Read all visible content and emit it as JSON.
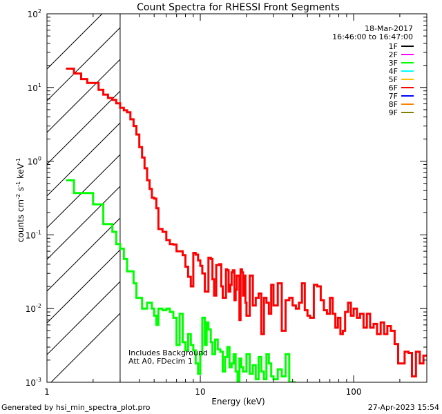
{
  "chart_data": {
    "type": "line",
    "title": "Count Spectra for RHESSI Front Segments",
    "xlabel": "Energy (keV)",
    "ylabel_parts": [
      "counts cm",
      "-2",
      " s",
      "-1",
      " keV",
      "-1"
    ],
    "xscale": "log",
    "yscale": "log",
    "xlim": [
      1,
      300
    ],
    "ylim": [
      0.001,
      100
    ],
    "x_ticks": [
      {
        "value": 1,
        "label": "1"
      },
      {
        "value": 10,
        "label": "10"
      },
      {
        "value": 100,
        "label": "100"
      }
    ],
    "y_ticks": [
      {
        "value": 0.001,
        "base": "10",
        "exp": "-3"
      },
      {
        "value": 0.01,
        "base": "10",
        "exp": "-2"
      },
      {
        "value": 0.1,
        "base": "10",
        "exp": "-1"
      },
      {
        "value": 1,
        "base": "10",
        "exp": "0"
      },
      {
        "value": 10,
        "base": "10",
        "exp": "1"
      },
      {
        "value": 100,
        "base": "10",
        "exp": "2"
      }
    ],
    "hatched_region": {
      "xmin": 1,
      "xmax": 3
    },
    "date": "18-Mar-2017",
    "time_range": "16:46:00 to 16:47:00",
    "legend_position": "top-right",
    "legend": [
      {
        "label": "1F",
        "color": "#000000"
      },
      {
        "label": "2F",
        "color": "#ff00ff"
      },
      {
        "label": "3F",
        "color": "#00ff00"
      },
      {
        "label": "4F",
        "color": "#00ffff"
      },
      {
        "label": "5F",
        "color": "#ffc000"
      },
      {
        "label": "6F",
        "color": "#ff0000"
      },
      {
        "label": "7F",
        "color": "#0000ff"
      },
      {
        "label": "8F",
        "color": "#ff8000"
      },
      {
        "label": "9F",
        "color": "#808000"
      }
    ],
    "annotations": [
      "Includes Background",
      "Att A0, FDecim 1"
    ],
    "series": [
      {
        "name": "6F",
        "color": "#ff0000",
        "steps": [
          [
            1.33,
            18
          ],
          [
            1.5,
            15.5
          ],
          [
            1.67,
            13
          ],
          [
            1.83,
            11.5
          ],
          [
            2.0,
            11.5
          ],
          [
            2.17,
            9.3
          ],
          [
            2.33,
            8
          ],
          [
            2.5,
            7.2
          ],
          [
            2.67,
            6.8
          ],
          [
            2.83,
            6.1
          ],
          [
            3.0,
            5.3
          ],
          [
            3.17,
            4.9
          ],
          [
            3.33,
            4.6
          ],
          [
            3.5,
            3.7
          ],
          [
            3.67,
            3.0
          ],
          [
            3.83,
            2.3
          ],
          [
            4.0,
            1.55
          ],
          [
            4.17,
            1.12
          ],
          [
            4.33,
            0.8
          ],
          [
            4.5,
            0.55
          ],
          [
            4.67,
            0.42
          ],
          [
            4.83,
            0.32
          ],
          [
            5.0,
            0.31
          ],
          [
            5.17,
            0.23
          ],
          [
            5.33,
            0.12
          ],
          [
            5.67,
            0.11
          ],
          [
            6.0,
            0.085
          ],
          [
            6.33,
            0.075
          ],
          [
            6.67,
            0.074
          ],
          [
            7.0,
            0.06
          ],
          [
            7.33,
            0.06
          ],
          [
            7.67,
            0.053
          ],
          [
            8.0,
            0.037
          ],
          [
            8.33,
            0.027
          ],
          [
            8.67,
            0.02
          ],
          [
            9.0,
            0.057
          ],
          [
            9.33,
            0.054
          ],
          [
            9.67,
            0.045
          ],
          [
            10.0,
            0.038
          ],
          [
            10.3,
            0.03
          ],
          [
            10.7,
            0.017
          ],
          [
            11.0,
            0.017
          ],
          [
            11.3,
            0.049
          ],
          [
            11.7,
            0.047
          ],
          [
            12.0,
            0.025
          ],
          [
            12.3,
            0.015
          ],
          [
            12.7,
            0.039
          ],
          [
            13.0,
            0.039
          ],
          [
            13.3,
            0.04
          ],
          [
            13.7,
            0.02
          ],
          [
            14.0,
            0.014
          ],
          [
            14.3,
            0.014
          ],
          [
            14.7,
            0.034
          ],
          [
            15.0,
            0.033
          ],
          [
            15.3,
            0.017
          ],
          [
            15.7,
            0.021
          ],
          [
            16.0,
            0.031
          ],
          [
            16.3,
            0.033
          ],
          [
            16.7,
            0.013
          ],
          [
            17.0,
            0.018
          ],
          [
            17.3,
            0.028
          ],
          [
            17.7,
            0.028
          ],
          [
            18.0,
            0.007
          ],
          [
            18.3,
            0.034
          ],
          [
            18.7,
            0.031
          ],
          [
            19.0,
            0.015
          ],
          [
            19.3,
            0.028
          ],
          [
            19.7,
            0.012
          ],
          [
            20.0,
            0.008
          ],
          [
            21.0,
            0.028
          ],
          [
            22.0,
            0.011
          ],
          [
            23.0,
            0.014
          ],
          [
            24.0,
            0.016
          ],
          [
            25.0,
            0.0045
          ],
          [
            26.0,
            0.014
          ],
          [
            27.0,
            0.012
          ],
          [
            28.0,
            0.0085
          ],
          [
            29.0,
            0.021
          ],
          [
            30.0,
            0.011
          ],
          [
            32.0,
            0.022
          ],
          [
            34.0,
            0.005
          ],
          [
            36.0,
            0.013
          ],
          [
            38.0,
            0.014
          ],
          [
            40.0,
            0.011
          ],
          [
            42.0,
            0.01
          ],
          [
            44.0,
            0.012
          ],
          [
            46.0,
            0.022
          ],
          [
            48.0,
            0.0095
          ],
          [
            50.0,
            0.008
          ],
          [
            52.0,
            0.0075
          ],
          [
            55.0,
            0.021
          ],
          [
            58.0,
            0.02
          ],
          [
            61.0,
            0.013
          ],
          [
            64.0,
            0.0095
          ],
          [
            67.0,
            0.0085
          ],
          [
            70.0,
            0.014
          ],
          [
            73.0,
            0.0085
          ],
          [
            76.0,
            0.0055
          ],
          [
            79.0,
            0.0075
          ],
          [
            82.0,
            0.0045
          ],
          [
            85.0,
            0.005
          ],
          [
            88.0,
            0.009
          ],
          [
            92.0,
            0.012
          ],
          [
            96.0,
            0.008
          ],
          [
            100.0,
            0.01
          ],
          [
            105.0,
            0.0075
          ],
          [
            110.0,
            0.0085
          ],
          [
            116.0,
            0.0055
          ],
          [
            122.0,
            0.0085
          ],
          [
            128.0,
            0.0055
          ],
          [
            135.0,
            0.0062
          ],
          [
            142.0,
            0.0045
          ],
          [
            150.0,
            0.0065
          ],
          [
            158.0,
            0.0045
          ],
          [
            166.0,
            0.0058
          ],
          [
            175.0,
            0.005
          ],
          [
            185.0,
            0.0033
          ],
          [
            195.0,
            0.0018
          ],
          [
            205.0,
            0.0018
          ],
          [
            215.0,
            0.0026
          ],
          [
            228.0,
            0.0025
          ],
          [
            240.0,
            0.0012
          ],
          [
            255.0,
            0.0026
          ],
          [
            270.0,
            0.0018
          ],
          [
            285.0,
            0.0023
          ],
          [
            300.0,
            0.0023
          ]
        ]
      },
      {
        "name": "3F",
        "color": "#00ff00",
        "steps": [
          [
            1.33,
            0.55
          ],
          [
            1.5,
            0.37
          ],
          [
            1.83,
            0.37
          ],
          [
            2.0,
            0.26
          ],
          [
            2.17,
            0.26
          ],
          [
            2.33,
            0.14
          ],
          [
            2.5,
            0.14
          ],
          [
            2.67,
            0.11
          ],
          [
            2.83,
            0.075
          ],
          [
            3.0,
            0.065
          ],
          [
            3.17,
            0.047
          ],
          [
            3.33,
            0.032
          ],
          [
            3.5,
            0.032
          ],
          [
            3.67,
            0.022
          ],
          [
            3.83,
            0.014
          ],
          [
            4.0,
            0.014
          ],
          [
            4.17,
            0.01
          ],
          [
            4.33,
            0.01
          ],
          [
            4.5,
            0.012
          ],
          [
            4.67,
            0.012
          ],
          [
            4.83,
            0.01
          ],
          [
            5.0,
            0.008
          ],
          [
            5.17,
            0.006
          ],
          [
            5.33,
            0.01
          ],
          [
            5.67,
            0.0095
          ],
          [
            6.0,
            0.01
          ],
          [
            6.33,
            0.009
          ],
          [
            6.67,
            0.0075
          ],
          [
            7.0,
            0.0032
          ],
          [
            7.33,
            0.0085
          ],
          [
            7.67,
            0.0035
          ],
          [
            8.0,
            0.0027
          ],
          [
            8.33,
            0.0045
          ],
          [
            8.67,
            0.0032
          ],
          [
            9.0,
            0.0027
          ],
          [
            9.33,
            0.0018
          ],
          [
            9.67,
            0.0013
          ],
          [
            10.0,
            0.0024
          ],
          [
            10.3,
            0.0075
          ],
          [
            10.7,
            0.0032
          ],
          [
            11.0,
            0.0065
          ],
          [
            11.3,
            0.0052
          ],
          [
            11.7,
            0.0035
          ],
          [
            12.0,
            0.0024
          ],
          [
            12.5,
            0.0038
          ],
          [
            13.0,
            0.0028
          ],
          [
            13.5,
            0.0026
          ],
          [
            14.0,
            0.0014
          ],
          [
            14.5,
            0.0022
          ],
          [
            15.0,
            0.003
          ],
          [
            15.5,
            0.0016
          ],
          [
            16.0,
            0.0018
          ],
          [
            16.5,
            0.0024
          ],
          [
            17.0,
            0.0014
          ],
          [
            17.5,
            0.001
          ],
          [
            18.0,
            0.0021
          ],
          [
            18.5,
            0.0016
          ],
          [
            19.0,
            0.0014
          ],
          [
            20.0,
            0.0024
          ],
          [
            21.0,
            0.0013
          ],
          [
            22.0,
            0.0017
          ],
          [
            23.0,
            0.0011
          ],
          [
            24.0,
            0.0022
          ],
          [
            25.0,
            0.0014
          ],
          [
            26.0,
            0.0011
          ],
          [
            27.0,
            0.0024
          ],
          [
            28.0,
            0.0018
          ],
          [
            29.0,
            0.0012
          ],
          [
            30.0,
            0.0011
          ],
          [
            32.0,
            0.0015
          ],
          [
            34.0,
            0.0012
          ],
          [
            36.0,
            0.0024
          ],
          [
            38.0,
            0.001
          ],
          [
            40.0,
            0.001
          ],
          [
            42.0,
            0.001
          ]
        ]
      }
    ]
  },
  "footer": {
    "left": "Generated by hsi_min_spectra_plot.pro",
    "right": "27-Apr-2023 15:54"
  }
}
